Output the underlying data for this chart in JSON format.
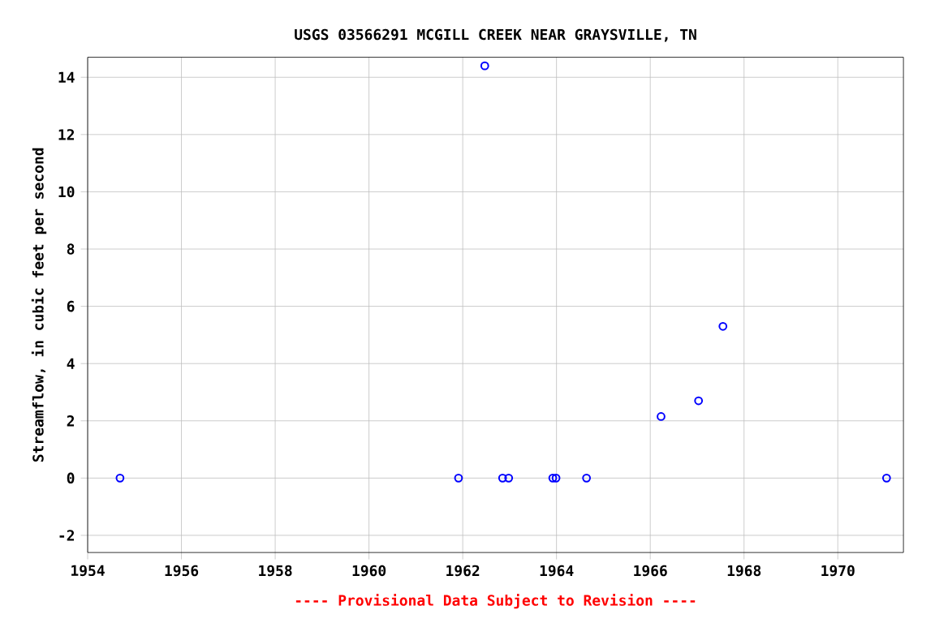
{
  "chart_data": {
    "type": "scatter",
    "title": "USGS 03566291 MCGILL CREEK NEAR GRAYSVILLE, TN",
    "ylabel": "Streamflow, in cubic feet per second",
    "annotations": [
      "---- Provisional Data Subject to Revision ----"
    ],
    "x": [
      1954.69,
      1961.91,
      1962.47,
      1962.85,
      1962.98,
      1963.92,
      1963.99,
      1964.64,
      1966.23,
      1967.03,
      1967.55,
      1971.04
    ],
    "series": [
      {
        "color": "#0000ff",
        "values": [
          0,
          0,
          14.4,
          0,
          0,
          0,
          0,
          0,
          2.15,
          2.7,
          5.3,
          0
        ]
      }
    ],
    "xlim": [
      1954,
      1971.4
    ],
    "ylim": [
      -2.6,
      14.7
    ],
    "xticks": [
      1954,
      1956,
      1958,
      1960,
      1962,
      1964,
      1966,
      1968,
      1970
    ],
    "yticks": [
      -2,
      0,
      2,
      4,
      6,
      8,
      10,
      12,
      14
    ],
    "grid": true,
    "marker": "circle"
  }
}
